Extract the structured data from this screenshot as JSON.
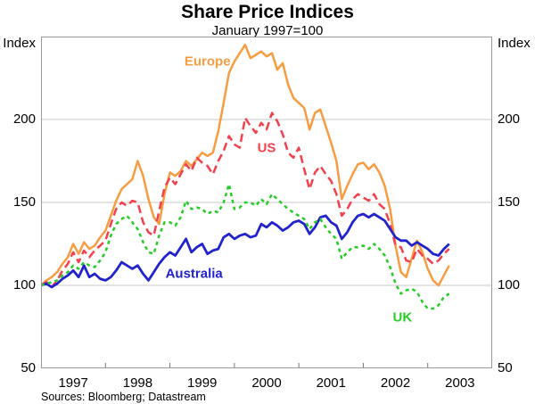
{
  "title": "Share Price Indices",
  "subtitle": "January 1997=100",
  "source": "Sources: Bloomberg; Datastream",
  "axis": {
    "unit_left": "Index",
    "unit_right": "Index"
  },
  "colors": {
    "frame": "#999999",
    "gridline": "#C9C9C9",
    "tick": "#777777",
    "europe": "#F89C42",
    "us": "#F2414E",
    "australia": "#2323CE",
    "uk": "#28CC28"
  },
  "chart_data": {
    "type": "line",
    "title": "Share Price Indices",
    "subtitle": "January 1997=100",
    "x_start": "1997-01",
    "frequency": "monthly",
    "x_axis_span_months": 84,
    "x_tick_labels": [
      "1997",
      "1998",
      "1999",
      "2000",
      "2001",
      "2002",
      "2003"
    ],
    "ylim": [
      50,
      250
    ],
    "gridline_values": [
      100,
      150,
      200
    ],
    "y_tick_labels": [
      "200",
      "150",
      "100",
      "50"
    ],
    "y_tick_values": [
      200,
      150,
      100,
      50
    ],
    "legend_position": "inline-labels",
    "grid": true,
    "series": [
      {
        "name": "Europe",
        "key": "europe",
        "line_style": "solid",
        "stroke_width": 2.5,
        "label_anchor": {
          "month_index": 31,
          "value": 235
        },
        "values": [
          100,
          103,
          105,
          108,
          113,
          117,
          125,
          119,
          126,
          122,
          124,
          129,
          133,
          142,
          151,
          158,
          161,
          164,
          175,
          166,
          152,
          141,
          137,
          155,
          168,
          166,
          169,
          175,
          172,
          176,
          180,
          178,
          180,
          193,
          210,
          228,
          235,
          240,
          245,
          237,
          239,
          241,
          238,
          240,
          230,
          234,
          221,
          213,
          210,
          207,
          194,
          204,
          206,
          196,
          186,
          175,
          152,
          160,
          167,
          173,
          174,
          170,
          173,
          168,
          160,
          146,
          124,
          108,
          105,
          116,
          127,
          120,
          110,
          103,
          100,
          106,
          112
        ]
      },
      {
        "name": "US",
        "key": "us",
        "line_style": "dashed",
        "stroke_width": 2.5,
        "label_anchor": {
          "month_index": 42,
          "value": 183
        },
        "values": [
          100,
          102,
          99,
          103,
          109,
          113,
          120,
          114,
          121,
          117,
          121,
          124,
          127,
          137,
          146,
          150,
          148,
          151,
          150,
          138,
          132,
          130,
          145,
          159,
          165,
          161,
          167,
          173,
          169,
          177,
          174,
          172,
          167,
          175,
          181,
          190,
          185,
          183,
          201,
          196,
          192,
          198,
          194,
          204,
          199,
          191,
          180,
          177,
          183,
          170,
          158,
          168,
          172,
          167,
          163,
          155,
          142,
          146,
          152,
          155,
          153,
          151,
          155,
          149,
          146,
          137,
          124,
          123,
          115,
          114,
          122,
          118,
          116,
          113,
          115,
          119,
          122
        ]
      },
      {
        "name": "Australia",
        "key": "australia",
        "line_style": "solid",
        "stroke_width": 2.8,
        "label_anchor": {
          "month_index": 28.5,
          "value": 107
        },
        "values": [
          100,
          101,
          99,
          101,
          104,
          106,
          109,
          105,
          112,
          105,
          107,
          104,
          103,
          105,
          109,
          114,
          112,
          110,
          112,
          107,
          103,
          108,
          113,
          117,
          120,
          118,
          123,
          128,
          120,
          123,
          125,
          119,
          121,
          122,
          129,
          131,
          128,
          130,
          131,
          129,
          130,
          137,
          135,
          138,
          136,
          133,
          135,
          138,
          139,
          137,
          131,
          135,
          141,
          142,
          138,
          136,
          128,
          132,
          138,
          142,
          143,
          141,
          143,
          141,
          139,
          134,
          129,
          127,
          127,
          124,
          126,
          124,
          122,
          119,
          118,
          122,
          125
        ]
      },
      {
        "name": "UK",
        "key": "uk",
        "line_style": "dotted",
        "stroke_width": 2.5,
        "label_anchor": {
          "month_index": 67.3,
          "value": 80.5
        },
        "values": [
          100,
          101,
          102,
          103,
          106,
          108,
          112,
          110,
          114,
          112,
          111,
          115,
          120,
          130,
          137,
          140,
          142,
          138,
          134,
          126,
          120,
          119,
          130,
          138,
          138,
          136,
          141,
          151,
          146,
          147,
          146,
          143,
          145,
          144,
          150,
          161,
          146,
          147,
          150,
          150,
          148,
          152,
          149,
          155,
          152,
          149,
          146,
          144,
          142,
          140,
          134,
          138,
          140,
          135,
          131,
          128,
          116,
          120,
          123,
          123,
          124,
          122,
          125,
          122,
          118,
          111,
          101,
          95,
          97,
          98,
          96,
          90,
          86,
          86,
          88,
          93,
          95
        ]
      }
    ]
  }
}
